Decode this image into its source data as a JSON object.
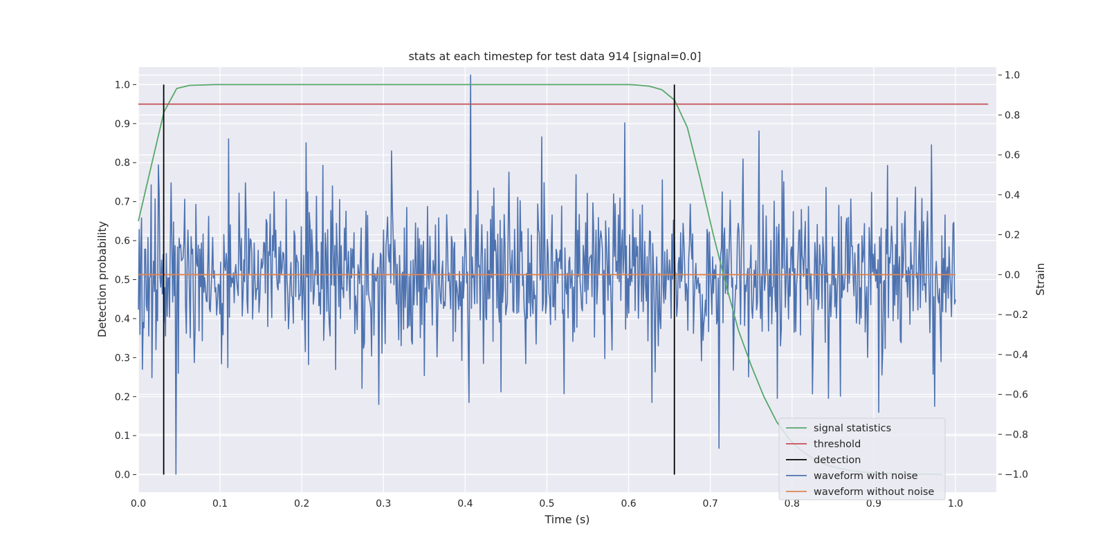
{
  "chart_data": {
    "type": "line",
    "title": "stats at each timestep for test data 914 [signal=0.0]",
    "xlabel": "Time (s)",
    "ylabel": "Detection probability",
    "y2label": "Strain",
    "xlim": [
      0.0,
      1.05
    ],
    "ylim": [
      -0.045,
      1.045
    ],
    "y2lim": [
      -1.09,
      1.04
    ],
    "grid": true,
    "legend_position": "lower-right",
    "xticks": [
      0.0,
      0.1,
      0.2,
      0.3,
      0.4,
      0.5,
      0.6,
      0.7,
      0.8,
      0.9,
      1.0
    ],
    "xtick_labels": [
      "0.0",
      "0.1",
      "0.2",
      "0.3",
      "0.4",
      "0.5",
      "0.6",
      "0.7",
      "0.8",
      "0.9",
      "1.0"
    ],
    "yticks": [
      0.0,
      0.1,
      0.2,
      0.3,
      0.4,
      0.5,
      0.6,
      0.7,
      0.8,
      0.9,
      1.0
    ],
    "ytick_labels": [
      "0.0",
      "0.1",
      "0.2",
      "0.3",
      "0.4",
      "0.5",
      "0.6",
      "0.7",
      "0.8",
      "0.9",
      "1.0"
    ],
    "y2ticks": [
      -1.0,
      -0.8,
      -0.6,
      -0.4,
      -0.2,
      0.0,
      0.2,
      0.4,
      0.6,
      0.8,
      1.0
    ],
    "y2tick_labels": [
      "−1.0",
      "−0.8",
      "−0.6",
      "−0.4",
      "−0.2",
      "0.0",
      "0.2",
      "0.4",
      "0.6",
      "0.8",
      "1.0"
    ],
    "series": [
      {
        "name": "signal statistics",
        "color": "#55a868",
        "axis": "left",
        "x": [
          0.0,
          0.0156,
          0.0313,
          0.0469,
          0.0625,
          0.0781,
          0.0938,
          0.2,
          0.3,
          0.4,
          0.5,
          0.6,
          0.6094,
          0.625,
          0.6406,
          0.6563,
          0.6719,
          0.6875,
          0.7031,
          0.7188,
          0.7344,
          0.75,
          0.7656,
          0.7813,
          0.7969,
          0.8125,
          0.8281,
          0.8438,
          0.8594,
          0.875,
          0.8906,
          0.9063,
          0.9219,
          0.9375,
          0.9531,
          0.9688,
          0.9844
        ],
        "y": [
          0.65,
          0.79,
          0.93,
          0.99,
          0.998,
          0.999,
          1.0,
          1.0,
          1.0,
          1.0,
          1.0,
          1.0,
          0.999,
          0.996,
          0.987,
          0.96,
          0.89,
          0.76,
          0.62,
          0.49,
          0.37,
          0.28,
          0.2,
          0.135,
          0.09,
          0.06,
          0.038,
          0.024,
          0.015,
          0.009,
          0.006,
          0.004,
          0.003,
          0.002,
          0.001,
          0.001,
          0.0
        ]
      },
      {
        "name": "threshold",
        "color": "#c44e52",
        "axis": "left",
        "x": [
          0.0,
          1.04
        ],
        "y": [
          0.95,
          0.95
        ]
      },
      {
        "name": "detection",
        "color": "#000000",
        "axis": "left",
        "type": "vlines",
        "x": [
          0.031,
          0.656
        ],
        "y": [
          0.0,
          1.0
        ]
      },
      {
        "name": "waveform with noise",
        "color": "#4c72b0",
        "axis": "right",
        "type": "noise",
        "x_range": [
          0.0,
          1.0
        ],
        "count": 1024,
        "std": 0.2,
        "peaks": [
          {
            "x": 0.0156,
            "y": 0.45
          },
          {
            "x": 0.024,
            "y": 0.55
          },
          {
            "x": 0.046,
            "y": -1.0
          },
          {
            "x": 0.11,
            "y": 0.68
          },
          {
            "x": 0.205,
            "y": 0.66
          },
          {
            "x": 0.294,
            "y": -0.65
          },
          {
            "x": 0.407,
            "y": 1.0
          },
          {
            "x": 0.405,
            "y": -0.64
          },
          {
            "x": 0.494,
            "y": 0.69
          },
          {
            "x": 0.595,
            "y": 0.76
          },
          {
            "x": 0.629,
            "y": -0.64
          },
          {
            "x": 0.711,
            "y": -0.87
          },
          {
            "x": 0.76,
            "y": 0.72
          },
          {
            "x": 0.906,
            "y": -0.69
          },
          {
            "x": 0.971,
            "y": 0.65
          },
          {
            "x": 0.975,
            "y": -0.66
          }
        ]
      },
      {
        "name": "waveform without noise",
        "color": "#dd8452",
        "axis": "right",
        "x": [
          0.0,
          1.0
        ],
        "y": [
          0.0,
          0.0
        ]
      }
    ]
  }
}
